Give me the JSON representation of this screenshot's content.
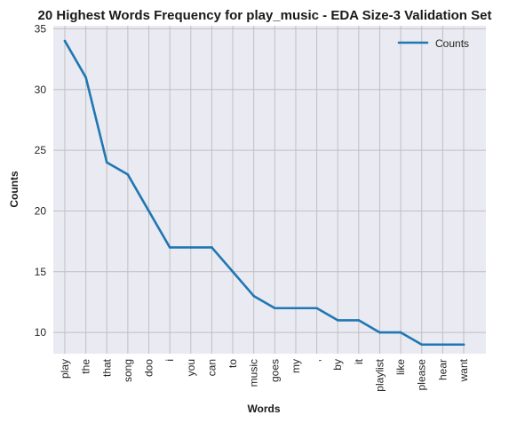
{
  "chart_data": {
    "type": "line",
    "title": "20 Highest Words Frequency for play_music - EDA Size-3 Validation Set",
    "xlabel": "Words",
    "ylabel": "Counts",
    "categories": [
      "play",
      "the",
      "that",
      "song",
      "doo",
      "i",
      "you",
      "can",
      "to",
      "music",
      "goes",
      "my",
      ",",
      "by",
      "it",
      "playlist",
      "like",
      "please",
      "hear",
      "want"
    ],
    "series": [
      {
        "name": "Counts",
        "values": [
          34,
          31,
          24,
          23,
          20,
          17,
          17,
          17,
          15,
          13,
          12,
          12,
          12,
          11,
          11,
          10,
          10,
          9,
          9,
          9
        ]
      }
    ],
    "yticks": [
      10,
      15,
      20,
      25,
      30,
      35
    ],
    "ylim": [
      8.25,
      35.25
    ],
    "grid": true,
    "legend_position": "top-right",
    "colors": {
      "line": "#1f77b4",
      "plot_background": "#eaeaf2",
      "grid": "#c0c0c0"
    }
  }
}
